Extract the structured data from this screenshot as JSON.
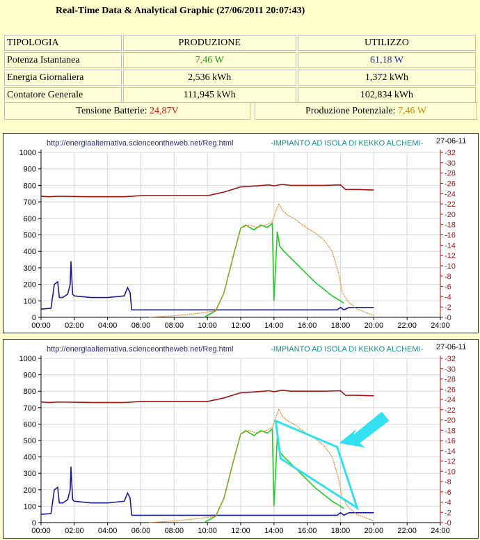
{
  "header": {
    "title": "Real-Time Data & Analytical Graphic (27/06/2011 20:07:43)"
  },
  "table": {
    "headers": [
      "TIPOLOGIA",
      "PRODUZIONE",
      "UTILIZZO"
    ],
    "rows": [
      {
        "label": "Potenza Istantanea",
        "prod": "7,46 W",
        "use": "61,18 W"
      },
      {
        "label": "Energia Giornaliera",
        "prod": "2,536 kWh",
        "use": "1,372 kWh"
      },
      {
        "label": "Contatore Generale",
        "prod": "111,945 kWh",
        "use": "102,834 kWh"
      }
    ]
  },
  "battery": {
    "label": "Tensione Batterie: ",
    "value": "24,87V"
  },
  "potential": {
    "label": "Produzione Potenziale: ",
    "value": "7,46 W"
  },
  "colors": {
    "green": "#22cc22",
    "blue": "#1a1aa0",
    "red": "#aa1111",
    "orange": "#e08a1e",
    "cyan": "#33e0f0"
  },
  "chart_data": [
    {
      "type": "line",
      "url_label": "http://energiaalternativa.scienceontheweb.net/Reg.html",
      "plant_label": "-IMPIANTO AD ISOLA DI KEKKO ALCHEMI-",
      "date_label": "27-06-11",
      "x_ticks": [
        "00:00",
        "02:00",
        "04:00",
        "06:00",
        "08:00",
        "10:00",
        "12:00",
        "14:00",
        "16:00",
        "18:00",
        "20:00",
        "22:00",
        "24:00"
      ],
      "y_left_ticks": [
        0,
        100,
        200,
        300,
        400,
        500,
        600,
        700,
        800,
        900,
        1000
      ],
      "y_right_ticks": [
        0,
        2,
        4,
        6,
        8,
        10,
        12,
        14,
        16,
        18,
        20,
        22,
        24,
        26,
        28,
        30,
        32
      ],
      "ylim_left": [
        0,
        1000
      ],
      "ylim_right": [
        0,
        32
      ],
      "xlim_hours": [
        0,
        24
      ],
      "series": [
        {
          "color": "blue",
          "points": [
            [
              0,
              50
            ],
            [
              0.6,
              55
            ],
            [
              0.8,
              200
            ],
            [
              1.0,
              215
            ],
            [
              1.1,
              120
            ],
            [
              1.3,
              120
            ],
            [
              1.6,
              140
            ],
            [
              1.75,
              200
            ],
            [
              1.8,
              340
            ],
            [
              1.9,
              140
            ],
            [
              2.0,
              130
            ],
            [
              3.0,
              120
            ],
            [
              4.0,
              120
            ],
            [
              4.5,
              125
            ],
            [
              5.0,
              130
            ],
            [
              5.2,
              180
            ],
            [
              5.35,
              150
            ],
            [
              5.45,
              45
            ],
            [
              6.0,
              45
            ],
            [
              8.0,
              45
            ],
            [
              9.0,
              45
            ],
            [
              10.0,
              45
            ],
            [
              12.0,
              45
            ],
            [
              13.5,
              45
            ],
            [
              14.0,
              45
            ],
            [
              16.0,
              45
            ],
            [
              17.0,
              45
            ],
            [
              17.8,
              45
            ],
            [
              18.0,
              60
            ],
            [
              18.2,
              45
            ],
            [
              18.5,
              60
            ],
            [
              20.0,
              60
            ]
          ]
        },
        {
          "color": "green",
          "points": [
            [
              9.8,
              0
            ],
            [
              10.5,
              40
            ],
            [
              11.0,
              150
            ],
            [
              11.5,
              350
            ],
            [
              12.0,
              540
            ],
            [
              12.3,
              560
            ],
            [
              12.8,
              530
            ],
            [
              13.2,
              560
            ],
            [
              13.6,
              545
            ],
            [
              13.9,
              570
            ],
            [
              14.0,
              100
            ],
            [
              14.2,
              520
            ],
            [
              14.35,
              430
            ],
            [
              14.6,
              400
            ],
            [
              15.0,
              360
            ],
            [
              15.5,
              310
            ],
            [
              16.0,
              260
            ],
            [
              16.5,
              210
            ],
            [
              17.0,
              170
            ],
            [
              17.5,
              130
            ],
            [
              18.0,
              100
            ],
            [
              18.2,
              85
            ]
          ]
        },
        {
          "color": "orange",
          "points": [
            [
              6.5,
              0
            ],
            [
              8.0,
              10
            ],
            [
              9.5,
              25
            ],
            [
              10.5,
              40
            ],
            [
              11.0,
              150
            ],
            [
              11.5,
              350
            ],
            [
              12.0,
              540
            ],
            [
              12.5,
              560
            ],
            [
              13.0,
              545
            ],
            [
              13.5,
              560
            ],
            [
              13.9,
              580
            ],
            [
              14.1,
              640
            ],
            [
              14.3,
              690
            ],
            [
              14.5,
              650
            ],
            [
              14.8,
              620
            ],
            [
              15.2,
              600
            ],
            [
              15.6,
              570
            ],
            [
              16.0,
              540
            ],
            [
              16.5,
              510
            ],
            [
              17.0,
              470
            ],
            [
              17.5,
              400
            ],
            [
              17.9,
              260
            ],
            [
              18.1,
              150
            ],
            [
              18.5,
              90
            ],
            [
              19.0,
              50
            ],
            [
              20.0,
              10
            ]
          ]
        },
        {
          "color": "red",
          "points": [
            [
              0,
              23.5
            ],
            [
              0.5,
              23.4
            ],
            [
              1.0,
              23.5
            ],
            [
              3.0,
              23.4
            ],
            [
              5.0,
              23.4
            ],
            [
              6.0,
              23.6
            ],
            [
              8.0,
              23.6
            ],
            [
              10.0,
              23.6
            ],
            [
              11.0,
              24.3
            ],
            [
              12.0,
              25.3
            ],
            [
              13.0,
              25.5
            ],
            [
              13.7,
              25.7
            ],
            [
              14.0,
              25.5
            ],
            [
              14.5,
              25.8
            ],
            [
              15.0,
              25.6
            ],
            [
              16.0,
              25.6
            ],
            [
              17.0,
              25.6
            ],
            [
              18.0,
              25.7
            ],
            [
              18.3,
              24.8
            ],
            [
              19.0,
              24.8
            ],
            [
              20.0,
              24.7
            ]
          ]
        }
      ]
    },
    {
      "type": "line",
      "url_label": "http://energiaalternativa.scienceontheweb.net/Reg.html",
      "plant_label": "-IMPIANTO AD ISOLA DI KEKKO ALCHEMI-",
      "date_label": "27-06-11",
      "x_ticks": [
        "00:00",
        "02:00",
        "04:00",
        "06:00",
        "08:00",
        "10:00",
        "12:00",
        "14:00",
        "16:00",
        "18:00",
        "20:00",
        "22:00",
        "24:00"
      ],
      "y_left_ticks": [
        0,
        100,
        200,
        300,
        400,
        500,
        600,
        700,
        800,
        900,
        1000
      ],
      "y_right_ticks": [
        0,
        2,
        4,
        6,
        8,
        10,
        12,
        14,
        16,
        18,
        20,
        22,
        24,
        26,
        28,
        30,
        32
      ],
      "ylim_left": [
        0,
        1000
      ],
      "ylim_right": [
        0,
        32
      ],
      "xlim_hours": [
        0,
        24
      ],
      "annotation": {
        "outline_hours_values": [
          [
            14.1,
            620
          ],
          [
            17.8,
            460
          ],
          [
            19.0,
            90
          ],
          [
            14.4,
            390
          ]
        ]
      },
      "series": [
        {
          "color": "blue",
          "points": [
            [
              0,
              50
            ],
            [
              0.6,
              55
            ],
            [
              0.8,
              200
            ],
            [
              1.0,
              215
            ],
            [
              1.1,
              120
            ],
            [
              1.3,
              120
            ],
            [
              1.6,
              140
            ],
            [
              1.75,
              200
            ],
            [
              1.8,
              340
            ],
            [
              1.9,
              140
            ],
            [
              2.0,
              130
            ],
            [
              3.0,
              120
            ],
            [
              4.0,
              120
            ],
            [
              4.5,
              125
            ],
            [
              5.0,
              130
            ],
            [
              5.2,
              180
            ],
            [
              5.35,
              150
            ],
            [
              5.45,
              45
            ],
            [
              6.0,
              45
            ],
            [
              8.0,
              45
            ],
            [
              9.0,
              45
            ],
            [
              10.0,
              45
            ],
            [
              12.0,
              45
            ],
            [
              13.5,
              45
            ],
            [
              14.0,
              45
            ],
            [
              16.0,
              45
            ],
            [
              17.0,
              45
            ],
            [
              17.8,
              45
            ],
            [
              18.0,
              60
            ],
            [
              18.2,
              45
            ],
            [
              18.5,
              60
            ],
            [
              20.0,
              60
            ]
          ]
        },
        {
          "color": "green",
          "points": [
            [
              9.8,
              0
            ],
            [
              10.5,
              40
            ],
            [
              11.0,
              150
            ],
            [
              11.5,
              350
            ],
            [
              12.0,
              540
            ],
            [
              12.3,
              560
            ],
            [
              12.8,
              530
            ],
            [
              13.2,
              560
            ],
            [
              13.6,
              545
            ],
            [
              13.9,
              570
            ],
            [
              14.0,
              100
            ],
            [
              14.2,
              520
            ],
            [
              14.35,
              430
            ],
            [
              14.6,
              400
            ],
            [
              15.0,
              360
            ],
            [
              15.5,
              310
            ],
            [
              16.0,
              260
            ],
            [
              16.5,
              210
            ],
            [
              17.0,
              170
            ],
            [
              17.5,
              130
            ],
            [
              18.0,
              100
            ],
            [
              18.2,
              85
            ]
          ]
        },
        {
          "color": "orange",
          "points": [
            [
              6.5,
              0
            ],
            [
              8.0,
              10
            ],
            [
              9.5,
              25
            ],
            [
              10.5,
              40
            ],
            [
              11.0,
              150
            ],
            [
              11.5,
              350
            ],
            [
              12.0,
              540
            ],
            [
              12.5,
              560
            ],
            [
              13.0,
              545
            ],
            [
              13.5,
              560
            ],
            [
              13.9,
              580
            ],
            [
              14.1,
              640
            ],
            [
              14.3,
              690
            ],
            [
              14.5,
              650
            ],
            [
              14.8,
              620
            ],
            [
              15.2,
              600
            ],
            [
              15.6,
              570
            ],
            [
              16.0,
              540
            ],
            [
              16.5,
              510
            ],
            [
              17.0,
              470
            ],
            [
              17.5,
              400
            ],
            [
              17.9,
              260
            ],
            [
              18.1,
              150
            ],
            [
              18.5,
              90
            ],
            [
              19.0,
              50
            ],
            [
              20.0,
              10
            ]
          ]
        },
        {
          "color": "red",
          "points": [
            [
              0,
              23.5
            ],
            [
              0.5,
              23.4
            ],
            [
              1.0,
              23.5
            ],
            [
              3.0,
              23.4
            ],
            [
              5.0,
              23.4
            ],
            [
              6.0,
              23.6
            ],
            [
              8.0,
              23.6
            ],
            [
              10.0,
              23.6
            ],
            [
              11.0,
              24.3
            ],
            [
              12.0,
              25.3
            ],
            [
              13.0,
              25.5
            ],
            [
              13.7,
              25.7
            ],
            [
              14.0,
              25.5
            ],
            [
              14.5,
              25.8
            ],
            [
              15.0,
              25.6
            ],
            [
              16.0,
              25.6
            ],
            [
              17.0,
              25.6
            ],
            [
              18.0,
              25.7
            ],
            [
              18.3,
              24.8
            ],
            [
              19.0,
              24.8
            ],
            [
              20.0,
              24.7
            ]
          ]
        }
      ]
    }
  ]
}
